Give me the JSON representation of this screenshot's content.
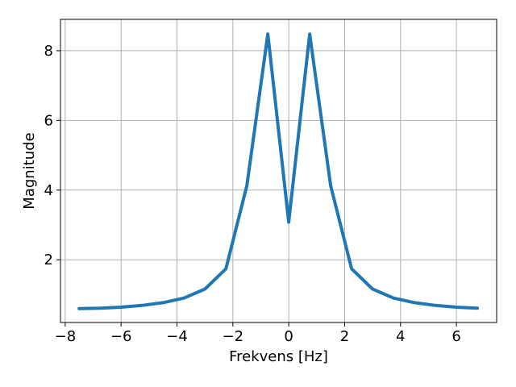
{
  "chart_data": {
    "type": "line",
    "title": "",
    "xlabel": "Frekvens [Hz]",
    "ylabel": "Magnitude",
    "xlim": [
      -8.17,
      7.44
    ],
    "ylim": [
      0.2,
      8.9
    ],
    "xticks": [
      -8,
      -6,
      -4,
      -2,
      0,
      2,
      4,
      6
    ],
    "yticks": [
      2,
      4,
      6,
      8
    ],
    "grid": true,
    "series": [
      {
        "color": "#1f77b4",
        "x": [
          -7.5,
          -6.75,
          -6.0,
          -5.25,
          -4.5,
          -3.75,
          -3.0,
          -2.25,
          -1.5,
          -0.75,
          0.0,
          0.75,
          1.5,
          2.25,
          3.0,
          3.75,
          4.5,
          5.25,
          6.0,
          6.75
        ],
        "y": [
          0.6,
          0.61,
          0.64,
          0.69,
          0.77,
          0.9,
          1.16,
          1.74,
          4.13,
          8.48,
          3.08,
          8.48,
          4.13,
          1.74,
          1.16,
          0.9,
          0.77,
          0.69,
          0.64,
          0.61
        ]
      }
    ]
  }
}
